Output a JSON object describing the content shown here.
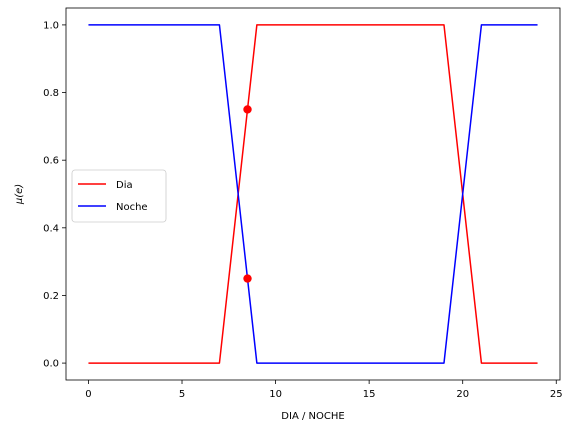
{
  "chart_data": {
    "type": "line",
    "title": "",
    "xlabel": "DIA / NOCHE",
    "ylabel": "μ(e)",
    "xlim": [
      -1.2,
      25.2
    ],
    "ylim": [
      -0.05,
      1.05
    ],
    "xticks": [
      0,
      5,
      10,
      15,
      20,
      25
    ],
    "yticks": [
      0.0,
      0.2,
      0.4,
      0.6,
      0.8,
      1.0
    ],
    "xtick_labels": [
      "0",
      "5",
      "10",
      "15",
      "20",
      "25"
    ],
    "ytick_labels": [
      "0.0",
      "0.2",
      "0.4",
      "0.6",
      "0.8",
      "1.0"
    ],
    "grid": false,
    "legend_position": "center-left",
    "series": [
      {
        "name": "Dia",
        "color": "#ff0000",
        "x": [
          0,
          7,
          9,
          19,
          21,
          24
        ],
        "y": [
          0,
          0,
          1,
          1,
          0,
          0
        ]
      },
      {
        "name": "Noche",
        "color": "#0000ff",
        "x": [
          0,
          7,
          9,
          19,
          21,
          24
        ],
        "y": [
          1,
          1,
          0,
          0,
          1,
          1
        ]
      }
    ],
    "markers": [
      {
        "x": 8.5,
        "y": 0.75,
        "color": "#ff0000"
      },
      {
        "x": 8.5,
        "y": 0.25,
        "color": "#ff0000"
      }
    ]
  }
}
